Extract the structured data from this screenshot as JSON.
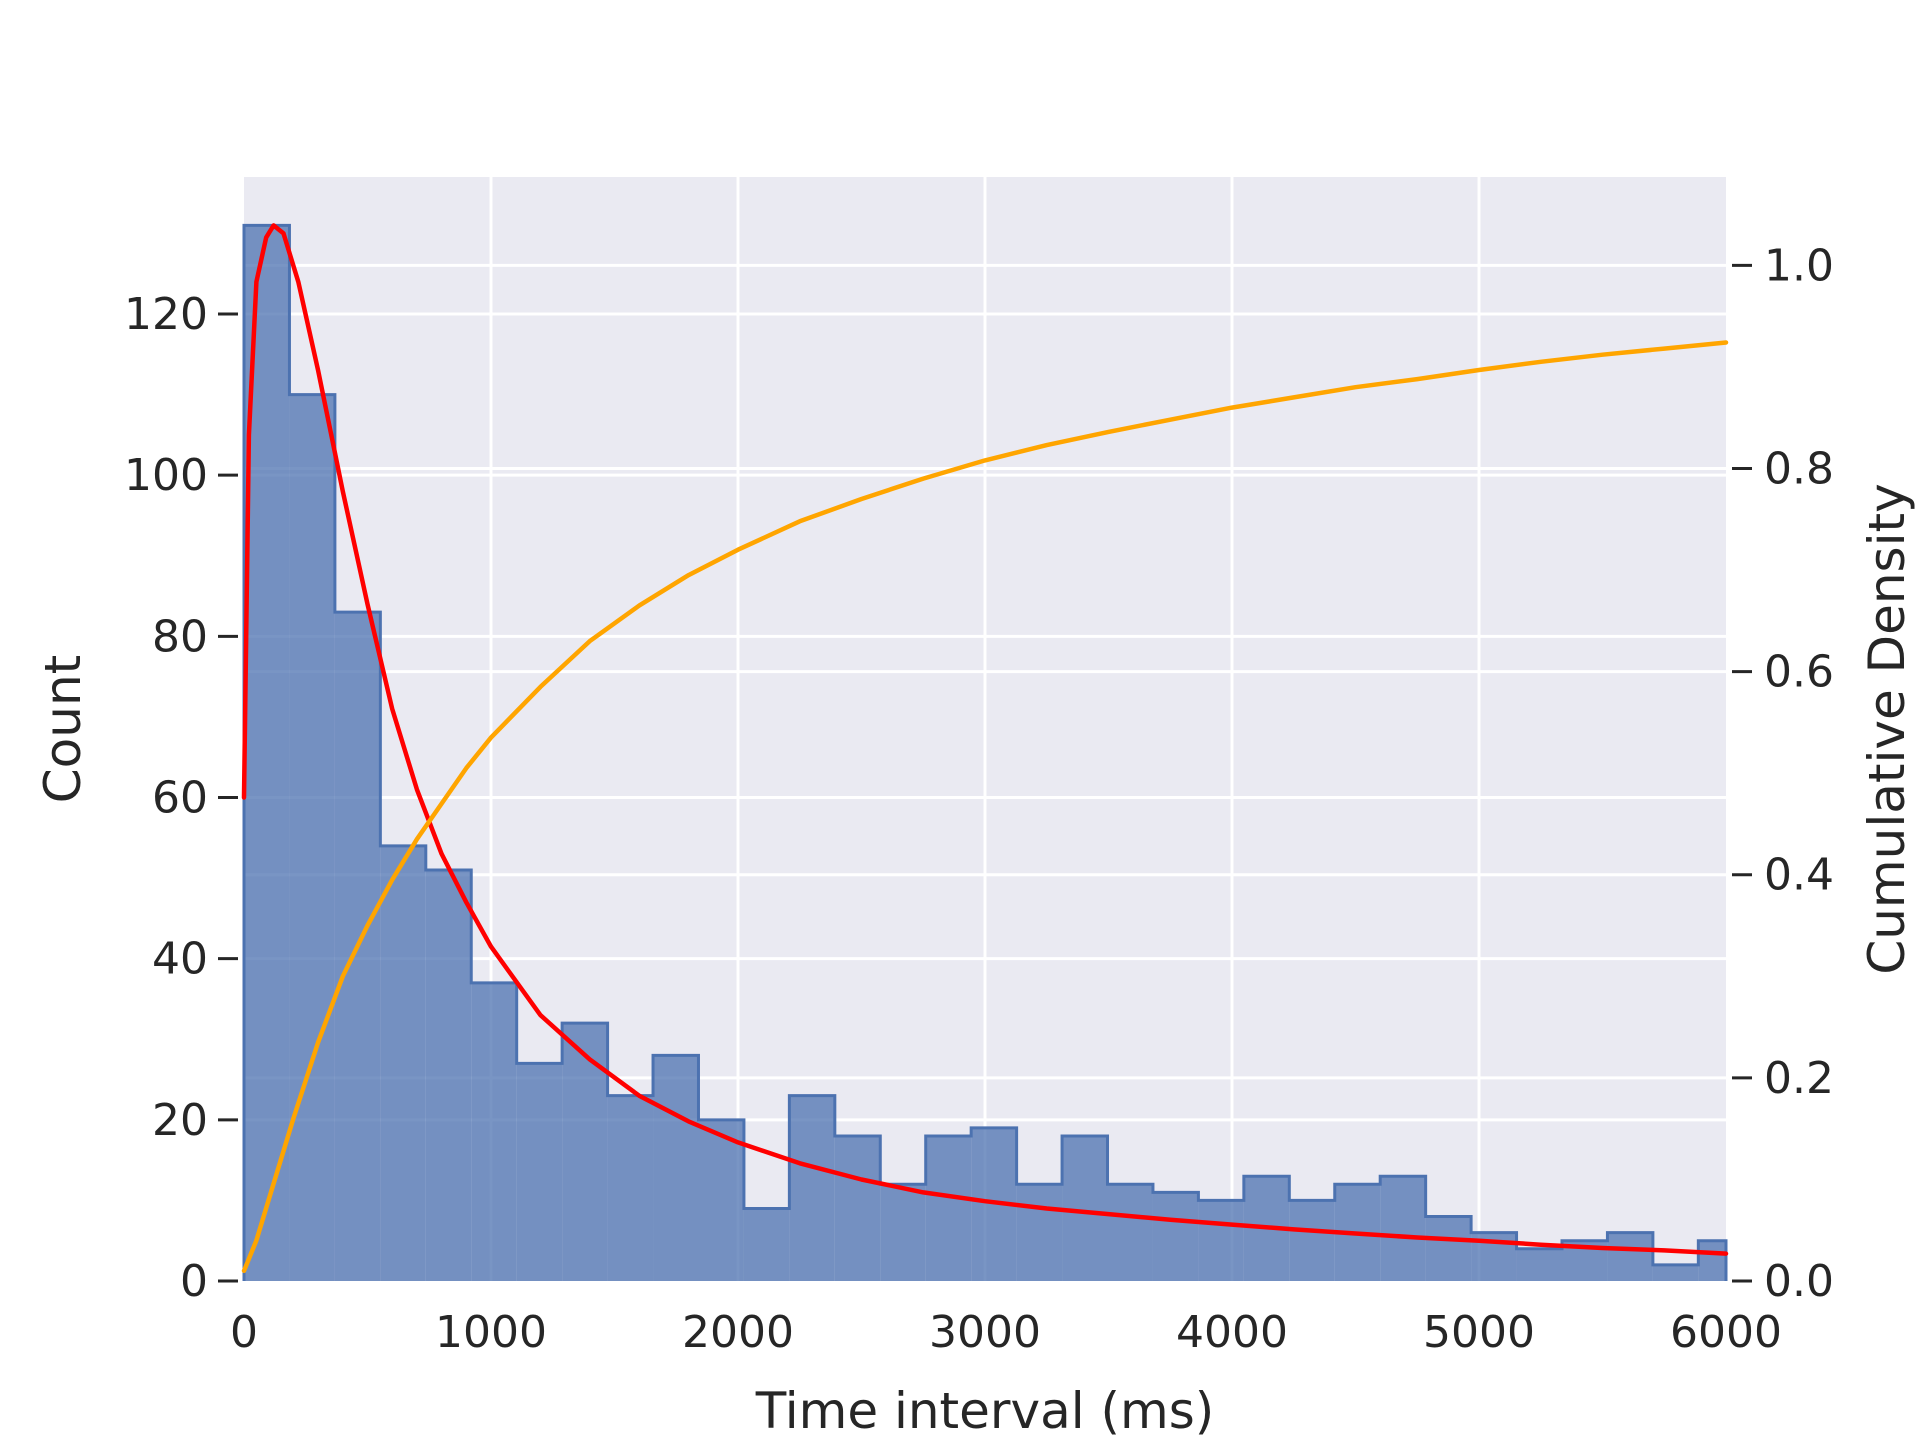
{
  "chart_data": {
    "type": "histogram",
    "xlabel": "Time interval (ms)",
    "ylabel": "Count",
    "y2label": "Cumulative Density",
    "xlim": [
      0,
      6000
    ],
    "ylim": [
      0,
      137
    ],
    "y2lim": [
      0,
      1.087
    ],
    "xticks": [
      0,
      1000,
      2000,
      3000,
      4000,
      5000,
      6000
    ],
    "yticks": [
      0,
      20,
      40,
      60,
      80,
      100,
      120
    ],
    "y2ticks": [
      0.0,
      0.2,
      0.4,
      0.6,
      0.8,
      1.0
    ],
    "y2tick_labels": [
      "0.0",
      "0.2",
      "0.4",
      "0.6",
      "0.8",
      "1.0"
    ],
    "grid": true,
    "histogram": {
      "bin_edges": [
        0,
        184,
        368,
        552,
        736,
        920,
        1104,
        1288,
        1472,
        1656,
        1840,
        2024,
        2208,
        2392,
        2576,
        2760,
        2944,
        3128,
        3312,
        3496,
        3680,
        3864,
        4048,
        4232,
        4416,
        4600,
        4784,
        4968,
        5152,
        5336,
        5520,
        5704,
        5888,
        6000
      ],
      "counts": [
        131,
        110,
        83,
        54,
        51,
        37,
        27,
        32,
        23,
        28,
        20,
        9,
        23,
        18,
        12,
        18,
        19,
        12,
        18,
        12,
        11,
        10,
        13,
        10,
        12,
        13,
        8,
        6,
        4,
        5,
        6,
        2,
        5
      ],
      "fill_color": "#4c72b0",
      "edge_color": "#4c72b0"
    },
    "series": [
      {
        "kind": "density",
        "axis": "left",
        "color": "#ff0000",
        "points": [
          [
            0,
            60
          ],
          [
            20,
            105
          ],
          [
            50,
            124
          ],
          [
            90,
            129.5
          ],
          [
            120,
            131
          ],
          [
            160,
            130
          ],
          [
            220,
            124
          ],
          [
            300,
            113
          ],
          [
            400,
            98
          ],
          [
            500,
            84
          ],
          [
            600,
            71
          ],
          [
            700,
            61
          ],
          [
            800,
            53
          ],
          [
            900,
            47
          ],
          [
            1000,
            41.5
          ],
          [
            1200,
            33
          ],
          [
            1400,
            27.5
          ],
          [
            1600,
            23
          ],
          [
            1800,
            19.8
          ],
          [
            2000,
            17.2
          ],
          [
            2250,
            14.6
          ],
          [
            2500,
            12.6
          ],
          [
            2750,
            11.0
          ],
          [
            3000,
            9.9
          ],
          [
            3250,
            9.0
          ],
          [
            3500,
            8.3
          ],
          [
            3750,
            7.6
          ],
          [
            4000,
            7.0
          ],
          [
            4250,
            6.4
          ],
          [
            4500,
            5.9
          ],
          [
            4750,
            5.4
          ],
          [
            5000,
            5.0
          ],
          [
            5250,
            4.5
          ],
          [
            5500,
            4.1
          ],
          [
            5750,
            3.8
          ],
          [
            6000,
            3.4
          ]
        ]
      },
      {
        "kind": "cumulative",
        "axis": "right",
        "color": "#ffa500",
        "points": [
          [
            0,
            0.01
          ],
          [
            50,
            0.04
          ],
          [
            100,
            0.08
          ],
          [
            200,
            0.16
          ],
          [
            300,
            0.235
          ],
          [
            400,
            0.3
          ],
          [
            500,
            0.35
          ],
          [
            600,
            0.395
          ],
          [
            700,
            0.435
          ],
          [
            800,
            0.47
          ],
          [
            900,
            0.505
          ],
          [
            1000,
            0.535
          ],
          [
            1200,
            0.585
          ],
          [
            1400,
            0.63
          ],
          [
            1600,
            0.665
          ],
          [
            1800,
            0.695
          ],
          [
            2000,
            0.72
          ],
          [
            2250,
            0.748
          ],
          [
            2500,
            0.77
          ],
          [
            2750,
            0.79
          ],
          [
            3000,
            0.808
          ],
          [
            3250,
            0.823
          ],
          [
            3500,
            0.836
          ],
          [
            3750,
            0.848
          ],
          [
            4000,
            0.86
          ],
          [
            4250,
            0.87
          ],
          [
            4500,
            0.88
          ],
          [
            4750,
            0.888
          ],
          [
            5000,
            0.897
          ],
          [
            5250,
            0.905
          ],
          [
            5500,
            0.912
          ],
          [
            5750,
            0.918
          ],
          [
            6000,
            0.924
          ]
        ]
      }
    ],
    "colors": {
      "background": "#eaeaf2",
      "grid": "#ffffff",
      "text": "#262626"
    }
  }
}
